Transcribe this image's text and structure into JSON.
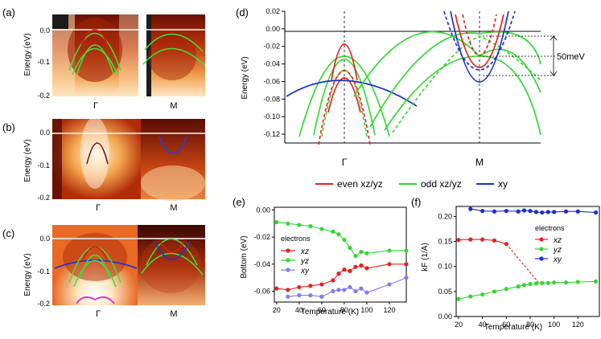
{
  "panels": {
    "a": {
      "label": "(a)",
      "ylabel": "Energy (eV)",
      "yticks": [
        "0.0",
        "-0.1",
        "-0.2"
      ],
      "xticks": [
        "Γ",
        "M"
      ]
    },
    "b": {
      "label": "(b)",
      "ylabel": "Energy (eV)",
      "yticks": [
        "0.0",
        "-0.1",
        "-0.2"
      ],
      "xticks": [
        "Γ",
        "M"
      ]
    },
    "c": {
      "label": "(c)",
      "ylabel": "Energy (eV)",
      "yticks": [
        "0.0",
        "-0.1",
        "-0.2"
      ],
      "xticks": [
        "Γ",
        "M"
      ]
    },
    "d": {
      "label": "(d)",
      "ylabel": "Energy (eV)",
      "xticks": [
        "Γ",
        "M"
      ],
      "annotation": "50meV",
      "legend": [
        {
          "label": "even xz/yz",
          "color": "#e8201e"
        },
        {
          "label": "odd xz/yz",
          "color": "#33d930"
        },
        {
          "label": "xy",
          "color": "#1a2fd1"
        }
      ]
    },
    "e": {
      "label": "(e)",
      "ylabel": "Bottom (eV)",
      "xlabel": "Temperature (K)",
      "legend_title": "electrons",
      "legend": [
        {
          "label": "xz",
          "color": "#e8201e"
        },
        {
          "label": "yz",
          "color": "#33d930"
        },
        {
          "label": "xy",
          "color": "#7d7df2"
        }
      ]
    },
    "f": {
      "label": "(f)",
      "ylabel": "kF (1/A)",
      "xlabel": "Temperature (K)",
      "legend_title": "electrons",
      "legend": [
        {
          "label": "xz",
          "color": "#e8201e"
        },
        {
          "label": "yz",
          "color": "#33d930"
        },
        {
          "label": "xy",
          "color": "#1a2fd1"
        }
      ]
    }
  },
  "chart_data": [
    {
      "id": "d",
      "type": "line",
      "title": "",
      "xlabel": "",
      "ylabel": "Energy (eV)",
      "ylim": [
        -0.13,
        0.02
      ],
      "yticks": [
        0.02,
        0.0,
        -0.02,
        -0.04,
        -0.06,
        -0.08,
        -0.1,
        -0.12
      ],
      "x_positions": [
        "Γ",
        "M"
      ],
      "annotation": {
        "text": "50meV",
        "levels": [
          0.0,
          -0.028,
          -0.053
        ]
      }
    },
    {
      "id": "e",
      "type": "line",
      "title": "",
      "xlabel": "Temperature (K)",
      "ylabel": "Bottom (eV)",
      "xlim": [
        18,
        135
      ],
      "ylim": [
        -0.068,
        0.002
      ],
      "xticks": [
        20,
        40,
        60,
        80,
        100,
        120
      ],
      "yticks": [
        0.0,
        -0.02,
        -0.04,
        -0.06
      ],
      "series": [
        {
          "name": "xz",
          "color": "#e8201e",
          "dashed": false,
          "x": [
            20,
            30,
            40,
            50,
            60,
            70,
            75,
            80,
            85,
            90,
            95,
            100,
            120,
            135
          ],
          "y": [
            -0.058,
            -0.059,
            -0.057,
            -0.056,
            -0.055,
            -0.052,
            -0.047,
            -0.044,
            -0.045,
            -0.042,
            -0.041,
            -0.043,
            -0.04,
            -0.04
          ]
        },
        {
          "name": "yz",
          "color": "#33d930",
          "dashed": false,
          "x": [
            20,
            30,
            40,
            50,
            60,
            70,
            75,
            80,
            85,
            90,
            95,
            100,
            120,
            135
          ],
          "y": [
            -0.009,
            -0.01,
            -0.011,
            -0.012,
            -0.014,
            -0.016,
            -0.018,
            -0.022,
            -0.028,
            -0.034,
            -0.031,
            -0.032,
            -0.03,
            -0.03
          ]
        },
        {
          "name": "xy",
          "color": "#7d7df2",
          "dashed": false,
          "x": [
            30,
            40,
            50,
            60,
            70,
            75,
            80,
            85,
            90,
            95,
            100,
            120,
            135
          ],
          "y": [
            -0.064,
            -0.063,
            -0.063,
            -0.064,
            -0.06,
            -0.059,
            -0.059,
            -0.057,
            -0.06,
            -0.058,
            -0.061,
            -0.055,
            -0.05
          ]
        }
      ]
    },
    {
      "id": "f",
      "type": "line",
      "title": "",
      "xlabel": "Temperature (K)",
      "ylabel": "kF (1/A)",
      "xlim": [
        18,
        138
      ],
      "ylim": [
        0.0,
        0.22
      ],
      "xticks": [
        20,
        40,
        60,
        80,
        100,
        120
      ],
      "yticks": [
        0.0,
        0.05,
        0.1,
        0.15,
        0.2
      ],
      "series": [
        {
          "name": "xz",
          "color": "#e8201e",
          "dashed": false,
          "x": [
            20,
            30,
            40,
            50,
            60
          ],
          "y": [
            0.153,
            0.154,
            0.154,
            0.152,
            0.145
          ]
        },
        {
          "name": "xz-extrapolation",
          "color": "#e8201e",
          "dashed": true,
          "x": [
            60,
            87
          ],
          "y": [
            0.145,
            0.068
          ]
        },
        {
          "name": "yz",
          "color": "#33d930",
          "dashed": false,
          "x": [
            20,
            30,
            40,
            50,
            60,
            70,
            75,
            80,
            85,
            90,
            95,
            100,
            110,
            120,
            135
          ],
          "y": [
            0.035,
            0.04,
            0.044,
            0.05,
            0.055,
            0.06,
            0.063,
            0.065,
            0.066,
            0.067,
            0.067,
            0.068,
            0.068,
            0.069,
            0.07
          ]
        },
        {
          "name": "xy",
          "color": "#1a2fd1",
          "dashed": false,
          "x": [
            30,
            40,
            50,
            60,
            70,
            75,
            80,
            85,
            90,
            95,
            100,
            110,
            120,
            135
          ],
          "y": [
            0.215,
            0.211,
            0.21,
            0.211,
            0.21,
            0.212,
            0.211,
            0.209,
            0.208,
            0.209,
            0.209,
            0.21,
            0.21,
            0.208
          ]
        }
      ]
    }
  ]
}
